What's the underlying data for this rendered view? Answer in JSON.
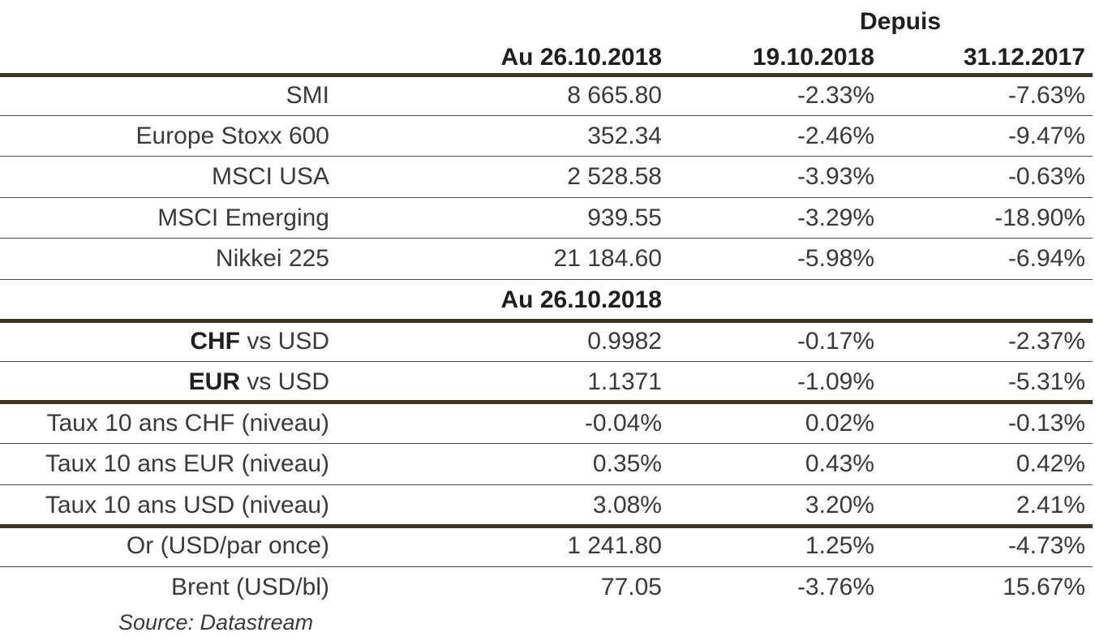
{
  "header": {
    "since_label": "Depuis",
    "col_asof": "Au 26.10.2018",
    "col_since_1": "19.10.2018",
    "col_since_2": "31.12.2017"
  },
  "indices": [
    {
      "name": "SMI",
      "value": "8 665.80",
      "chg1": "-2.33%",
      "chg2": "-7.63%"
    },
    {
      "name": "Europe Stoxx 600",
      "value": "352.34",
      "chg1": "-2.46%",
      "chg2": "-9.47%"
    },
    {
      "name": "MSCI USA",
      "value": "2 528.58",
      "chg1": "-3.93%",
      "chg2": "-0.63%"
    },
    {
      "name": "MSCI Emerging",
      "value": "939.55",
      "chg1": "-3.29%",
      "chg2": "-18.90%"
    },
    {
      "name": "Nikkei 225",
      "value": "21 184.60",
      "chg1": "-5.98%",
      "chg2": "-6.94%"
    }
  ],
  "subheader": {
    "asof": "Au 26.10.2018"
  },
  "fx": [
    {
      "name_bold": "CHF",
      "name_rest": " vs USD",
      "value": "0.9982",
      "chg1": "-0.17%",
      "chg2": "-2.37%"
    },
    {
      "name_bold": "EUR",
      "name_rest": " vs USD",
      "value": "1.1371",
      "chg1": "-1.09%",
      "chg2": "-5.31%"
    }
  ],
  "rates": [
    {
      "name": "Taux 10 ans CHF (niveau)",
      "value": "-0.04%",
      "chg1": "0.02%",
      "chg2": "-0.13%"
    },
    {
      "name": "Taux 10 ans EUR (niveau)",
      "value": "0.35%",
      "chg1": "0.43%",
      "chg2": "0.42%"
    },
    {
      "name": "Taux 10 ans USD (niveau)",
      "value": "3.08%",
      "chg1": "3.20%",
      "chg2": "2.41%"
    }
  ],
  "commodities": [
    {
      "name": "Or (USD/par once)",
      "value": "1 241.80",
      "chg1": "1.25%",
      "chg2": "-4.73%"
    },
    {
      "name": "Brent (USD/bl)",
      "value": "77.05",
      "chg1": "-3.76%",
      "chg2": "15.67%"
    }
  ],
  "source": "Source: Datastream"
}
